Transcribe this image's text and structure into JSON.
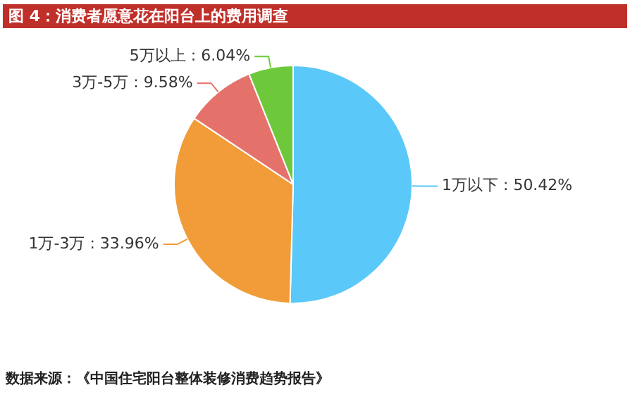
{
  "chart_data": {
    "type": "pie",
    "title": "图 4：消费者愿意花在阳台上的费用调查",
    "categories": [
      "1万以下",
      "1万-3万",
      "3万-5万",
      "5万以上"
    ],
    "values": [
      50.42,
      33.96,
      9.58,
      6.04
    ],
    "value_labels": [
      "50.42%",
      "33.96%",
      "9.58%",
      "6.04%"
    ],
    "colors": [
      "#5bc8fa",
      "#f19c38",
      "#e5726a",
      "#6dc93b"
    ],
    "legend": false,
    "annotations": [
      "数据来源：《中国住宅阳台整体装修消费趋势报告》"
    ]
  }
}
